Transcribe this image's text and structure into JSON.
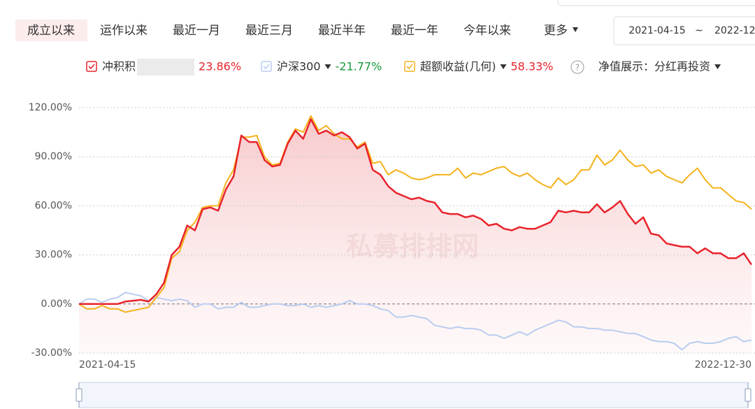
{
  "tabs": [
    "成立以来",
    "运作以来",
    "最近一月",
    "最近三月",
    "最近半年",
    "最近一年",
    "今年以来",
    "更多"
  ],
  "active_tab": 0,
  "date_range": {
    "start": "2021-04-15",
    "separator": "~",
    "end": "2022-12"
  },
  "display_mode": {
    "label": "净值展示：",
    "value": "分红再投资"
  },
  "help_icon": "?",
  "watermark": "私募排排网",
  "chart_data": {
    "type": "line",
    "categories": [
      "2021-04-15",
      null,
      null,
      null,
      null,
      null,
      null,
      null,
      null,
      null,
      null,
      null,
      null,
      null,
      null,
      null,
      null,
      null,
      null,
      null,
      null,
      null,
      null,
      null,
      null,
      null,
      null,
      null,
      null,
      null,
      null,
      null,
      null,
      null,
      null,
      null,
      null,
      null,
      null,
      null,
      null,
      null,
      null,
      null,
      null,
      null,
      null,
      null,
      null,
      null,
      null,
      null,
      null,
      null,
      null,
      null,
      null,
      null,
      null,
      null,
      null,
      null,
      null,
      null,
      null,
      null,
      null,
      null,
      null,
      null,
      null,
      null,
      null,
      null,
      null,
      null,
      null,
      null,
      null,
      null,
      null,
      null,
      null,
      null,
      null,
      null,
      null,
      "2022-12-30"
    ],
    "series": [
      {
        "name": "冲积积",
        "color": "#e8232b",
        "final_label": "23.86%",
        "area": true,
        "values": [
          0,
          0,
          0,
          0,
          0,
          0,
          1.5,
          2,
          2.5,
          1.5,
          6,
          13,
          30,
          35,
          48,
          45,
          58,
          59,
          57,
          70,
          78,
          103,
          99,
          99,
          88,
          84,
          85,
          98,
          106,
          101,
          113,
          104,
          106,
          103,
          105,
          102,
          95,
          98,
          82,
          79,
          72,
          68,
          66,
          64,
          65,
          63,
          62,
          56,
          55,
          55,
          53,
          54,
          52,
          48,
          49,
          46,
          45,
          47,
          46,
          46,
          48,
          50,
          57,
          56,
          57,
          56,
          56,
          61,
          56,
          59,
          63,
          55,
          49,
          53,
          43,
          42,
          37,
          36,
          35,
          35,
          31,
          34,
          31,
          31,
          28,
          28,
          31,
          24
        ]
      },
      {
        "name": "沪深300",
        "color": "#b9cdf0",
        "final_label": "-21.77%",
        "label_color": "#1a9a3a",
        "values": [
          0,
          3,
          3,
          1,
          3,
          4,
          7,
          6,
          5,
          2,
          4,
          3,
          2,
          3,
          2,
          -2,
          0,
          0,
          -3,
          -2,
          -2,
          1,
          -2,
          -2,
          -1,
          0,
          0,
          -1,
          -1,
          0,
          -2,
          -1,
          -2,
          -1,
          0,
          2,
          0,
          0,
          -1,
          -3,
          -4,
          -8,
          -8,
          -7,
          -8,
          -9,
          -13,
          -14,
          -15,
          -14,
          -15,
          -15,
          -16,
          -19,
          -19,
          -21,
          -19,
          -17,
          -19,
          -16,
          -14,
          -12,
          -10,
          -11,
          -14,
          -14,
          -15,
          -15,
          -16,
          -16,
          -17,
          -18,
          -18,
          -20,
          -22,
          -23,
          -23,
          -24,
          -28,
          -24,
          -23,
          -24,
          -24,
          -23,
          -21,
          -20,
          -23,
          -22
        ]
      },
      {
        "name": "超额收益(几何)",
        "color": "#f5b21b",
        "final_label": "58.33%",
        "values": [
          0,
          -3,
          -3,
          -1,
          -3,
          -3,
          -5,
          -4,
          -3,
          -2,
          4,
          10,
          28,
          32,
          45,
          50,
          59,
          60,
          60,
          74,
          82,
          102,
          102,
          103,
          90,
          85,
          86,
          99,
          107,
          105,
          115,
          106,
          109,
          104,
          101,
          101,
          96,
          99,
          86,
          87,
          79,
          82,
          80,
          77,
          76,
          77,
          79,
          79,
          79,
          83,
          77,
          80,
          79,
          81,
          83,
          84,
          80,
          78,
          80,
          76,
          73,
          71,
          77,
          73,
          76,
          82,
          82,
          91,
          85,
          88,
          94,
          88,
          84,
          85,
          80,
          82,
          78,
          76,
          74,
          79,
          83,
          76,
          71,
          71,
          67,
          63,
          62,
          58
        ]
      }
    ],
    "ylim": [
      -30,
      120
    ],
    "yticks": [
      {
        "value": -30,
        "label": "-30.00%"
      },
      {
        "value": 0,
        "label": "0.00%"
      },
      {
        "value": 30,
        "label": "30.00%"
      },
      {
        "value": 60,
        "label": "60.00%"
      },
      {
        "value": 90,
        "label": "90.00%"
      },
      {
        "value": 120,
        "label": "120.00%"
      }
    ],
    "grid": true
  }
}
